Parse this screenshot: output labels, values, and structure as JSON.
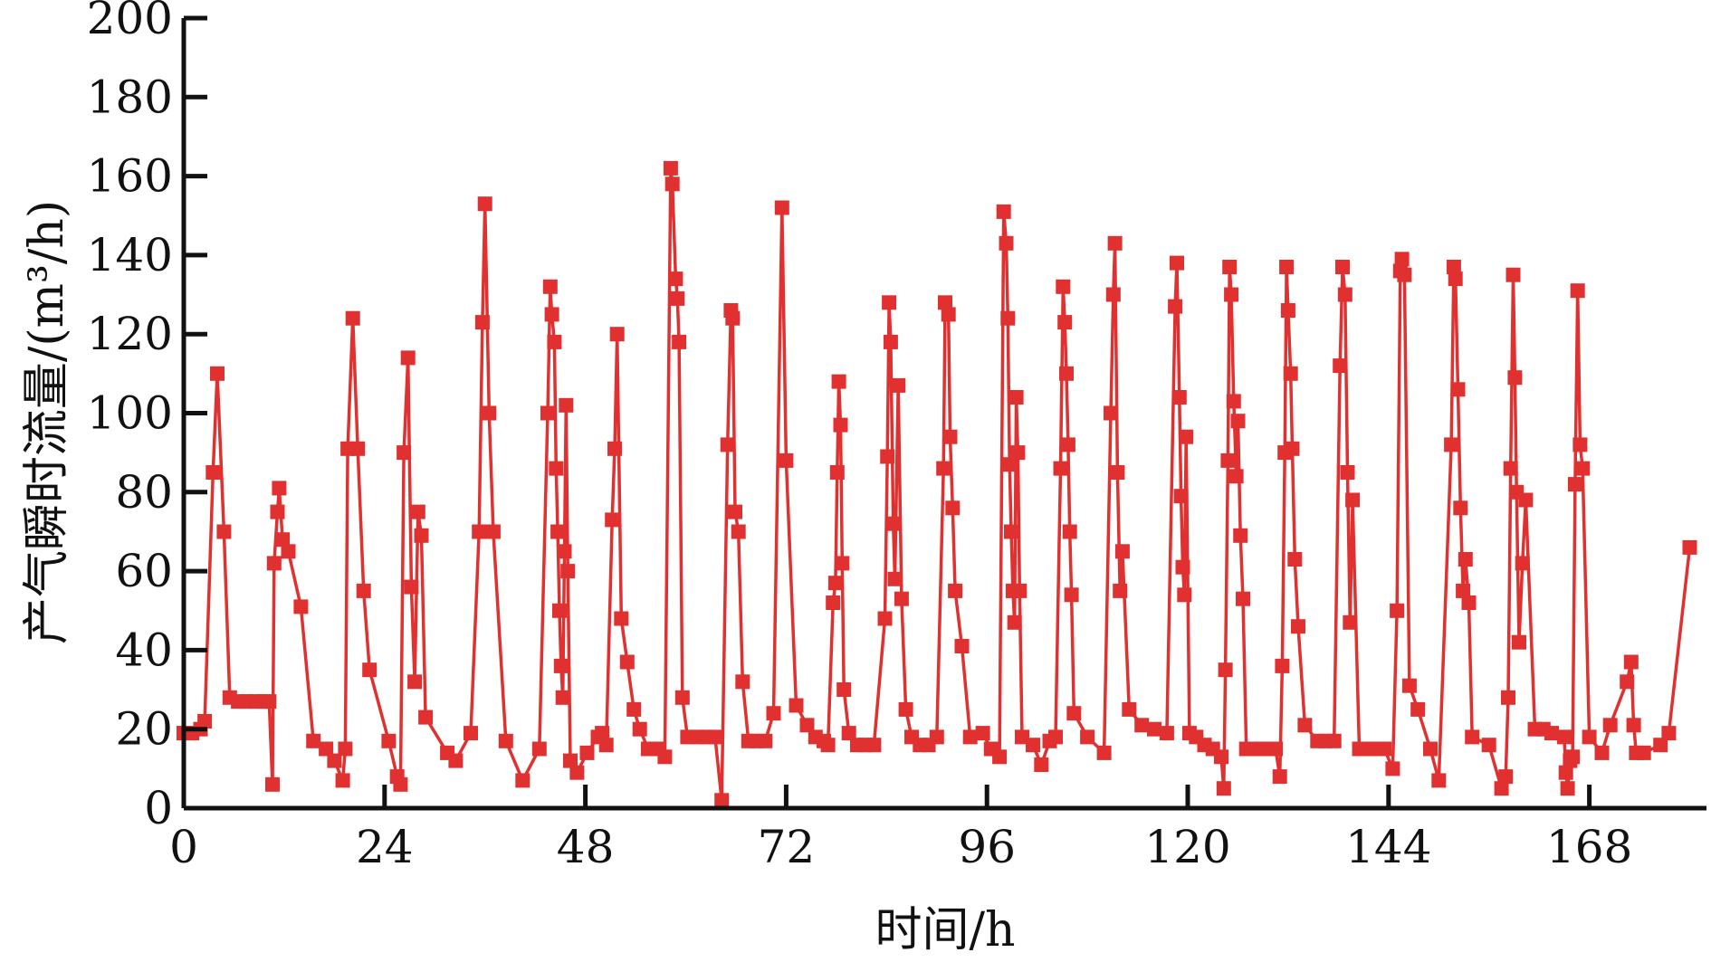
{
  "chart_data": {
    "type": "line",
    "title": "",
    "xlabel": "时间/h",
    "ylabel": "产气瞬时流量/(m³/h)",
    "xlim": [
      0,
      182
    ],
    "ylim": [
      0,
      200
    ],
    "xticks": [
      0,
      24,
      48,
      72,
      96,
      120,
      144,
      168
    ],
    "yticks": [
      0,
      20,
      40,
      60,
      80,
      100,
      120,
      140,
      160,
      180,
      200
    ],
    "grid": false,
    "legend": "none",
    "series": [
      {
        "color": "#e03030",
        "marker": "square",
        "points": [
          [
            0,
            19
          ],
          [
            1,
            19
          ],
          [
            2,
            20
          ],
          [
            2.5,
            22
          ],
          [
            3.5,
            85
          ],
          [
            4,
            110
          ],
          [
            4.8,
            70
          ],
          [
            5.5,
            28
          ],
          [
            6.5,
            27
          ],
          [
            7.5,
            27
          ],
          [
            8.5,
            27
          ],
          [
            9.5,
            27
          ],
          [
            10.2,
            27
          ],
          [
            10.6,
            6
          ],
          [
            10.8,
            62
          ],
          [
            11.2,
            75
          ],
          [
            11.4,
            81
          ],
          [
            11.8,
            68
          ],
          [
            12.5,
            65
          ],
          [
            14,
            51
          ],
          [
            15.5,
            17
          ],
          [
            17,
            15
          ],
          [
            18,
            12
          ],
          [
            19,
            7
          ],
          [
            19.3,
            15
          ],
          [
            19.6,
            91
          ],
          [
            20.2,
            124
          ],
          [
            20.8,
            91
          ],
          [
            21.5,
            55
          ],
          [
            22.2,
            35
          ],
          [
            24.5,
            17
          ],
          [
            25.5,
            8
          ],
          [
            25.9,
            6
          ],
          [
            26.3,
            90
          ],
          [
            26.8,
            114
          ],
          [
            27.2,
            56
          ],
          [
            27.6,
            32
          ],
          [
            28,
            75
          ],
          [
            28.4,
            69
          ],
          [
            28.9,
            23
          ],
          [
            31.5,
            14
          ],
          [
            32.5,
            12
          ],
          [
            34.3,
            19
          ],
          [
            35.3,
            70
          ],
          [
            35.7,
            123
          ],
          [
            36,
            153
          ],
          [
            36.5,
            100
          ],
          [
            37,
            70
          ],
          [
            38.5,
            17
          ],
          [
            40.5,
            7
          ],
          [
            42.5,
            15
          ],
          [
            43.5,
            100
          ],
          [
            43.8,
            132
          ],
          [
            44,
            125
          ],
          [
            44.3,
            118
          ],
          [
            44.5,
            86
          ],
          [
            44.7,
            70
          ],
          [
            44.9,
            50
          ],
          [
            45.1,
            36
          ],
          [
            45.3,
            28
          ],
          [
            45.5,
            65
          ],
          [
            45.7,
            102
          ],
          [
            45.9,
            60
          ],
          [
            46.2,
            12
          ],
          [
            47,
            9
          ],
          [
            48.2,
            14
          ],
          [
            49.5,
            18
          ],
          [
            50,
            19
          ],
          [
            50.5,
            16
          ],
          [
            51.2,
            73
          ],
          [
            51.5,
            91
          ],
          [
            51.8,
            120
          ],
          [
            52.3,
            48
          ],
          [
            53,
            37
          ],
          [
            53.8,
            25
          ],
          [
            54.5,
            20
          ],
          [
            55.5,
            15
          ],
          [
            56.5,
            15
          ],
          [
            57.5,
            13
          ],
          [
            58.2,
            162
          ],
          [
            58.4,
            158
          ],
          [
            58.8,
            134
          ],
          [
            59,
            129
          ],
          [
            59.2,
            118
          ],
          [
            59.6,
            28
          ],
          [
            60.2,
            18
          ],
          [
            61.5,
            18
          ],
          [
            62.5,
            18
          ],
          [
            63.5,
            18
          ],
          [
            64.3,
            2
          ],
          [
            65,
            92
          ],
          [
            65.4,
            126
          ],
          [
            65.6,
            124
          ],
          [
            65.9,
            75
          ],
          [
            66.3,
            70
          ],
          [
            66.8,
            32
          ],
          [
            67.5,
            17
          ],
          [
            68.5,
            17
          ],
          [
            69.5,
            17
          ],
          [
            70.5,
            24
          ],
          [
            71.5,
            152
          ],
          [
            72,
            88
          ],
          [
            73.2,
            26
          ],
          [
            74.5,
            21
          ],
          [
            75.5,
            18
          ],
          [
            76.5,
            17
          ],
          [
            77,
            16
          ],
          [
            77.6,
            52
          ],
          [
            77.9,
            57
          ],
          [
            78.1,
            85
          ],
          [
            78.3,
            108
          ],
          [
            78.5,
            97
          ],
          [
            78.7,
            62
          ],
          [
            78.9,
            30
          ],
          [
            79.5,
            19
          ],
          [
            80.5,
            16
          ],
          [
            81.5,
            16
          ],
          [
            82.5,
            16
          ],
          [
            83.8,
            48
          ],
          [
            84.1,
            89
          ],
          [
            84.3,
            128
          ],
          [
            84.5,
            118
          ],
          [
            84.8,
            72
          ],
          [
            85,
            58
          ],
          [
            85.4,
            107
          ],
          [
            85.8,
            53
          ],
          [
            86.3,
            25
          ],
          [
            87,
            18
          ],
          [
            88,
            16
          ],
          [
            89,
            16
          ],
          [
            90,
            18
          ],
          [
            90.8,
            86
          ],
          [
            91,
            128
          ],
          [
            91.4,
            125
          ],
          [
            91.6,
            94
          ],
          [
            91.9,
            76
          ],
          [
            92.2,
            55
          ],
          [
            93,
            41
          ],
          [
            94,
            18
          ],
          [
            95.5,
            19
          ],
          [
            96.5,
            15
          ],
          [
            97.5,
            13
          ],
          [
            98,
            151
          ],
          [
            98.3,
            143
          ],
          [
            98.5,
            124
          ],
          [
            98.7,
            87
          ],
          [
            98.9,
            70
          ],
          [
            99.1,
            55
          ],
          [
            99.3,
            47
          ],
          [
            99.5,
            104
          ],
          [
            99.7,
            90
          ],
          [
            99.9,
            55
          ],
          [
            100.2,
            18
          ],
          [
            101.5,
            16
          ],
          [
            102.5,
            11
          ],
          [
            103.5,
            17
          ],
          [
            104.2,
            18
          ],
          [
            104.8,
            86
          ],
          [
            105.1,
            132
          ],
          [
            105.3,
            123
          ],
          [
            105.5,
            110
          ],
          [
            105.7,
            92
          ],
          [
            105.9,
            70
          ],
          [
            106.1,
            54
          ],
          [
            106.4,
            24
          ],
          [
            108,
            18
          ],
          [
            110,
            14
          ],
          [
            110.8,
            100
          ],
          [
            111.1,
            130
          ],
          [
            111.3,
            143
          ],
          [
            111.6,
            85
          ],
          [
            111.9,
            55
          ],
          [
            112.2,
            65
          ],
          [
            113,
            25
          ],
          [
            114.5,
            21
          ],
          [
            116,
            20
          ],
          [
            117.5,
            19
          ],
          [
            118.5,
            127
          ],
          [
            118.7,
            138
          ],
          [
            119,
            104
          ],
          [
            119.2,
            79
          ],
          [
            119.4,
            61
          ],
          [
            119.6,
            54
          ],
          [
            119.8,
            94
          ],
          [
            120.2,
            19
          ],
          [
            121,
            18
          ],
          [
            122,
            16
          ],
          [
            123,
            15
          ],
          [
            124,
            13
          ],
          [
            124.3,
            5
          ],
          [
            124.5,
            35
          ],
          [
            124.8,
            88
          ],
          [
            125,
            137
          ],
          [
            125.2,
            130
          ],
          [
            125.5,
            103
          ],
          [
            125.8,
            84
          ],
          [
            126,
            98
          ],
          [
            126.3,
            69
          ],
          [
            126.6,
            53
          ],
          [
            127,
            15
          ],
          [
            128,
            15
          ],
          [
            129.5,
            15
          ],
          [
            130.5,
            15
          ],
          [
            131,
            8
          ],
          [
            131.3,
            36
          ],
          [
            131.6,
            90
          ],
          [
            131.8,
            137
          ],
          [
            132,
            126
          ],
          [
            132.3,
            110
          ],
          [
            132.5,
            91
          ],
          [
            132.8,
            63
          ],
          [
            133.2,
            46
          ],
          [
            134,
            21
          ],
          [
            135.5,
            17
          ],
          [
            136.5,
            17
          ],
          [
            137.5,
            17
          ],
          [
            138.2,
            112
          ],
          [
            138.5,
            137
          ],
          [
            138.8,
            130
          ],
          [
            139.1,
            85
          ],
          [
            139.4,
            47
          ],
          [
            139.7,
            78
          ],
          [
            140.5,
            15
          ],
          [
            142,
            15
          ],
          [
            143.5,
            15
          ],
          [
            144.5,
            10
          ],
          [
            145,
            50
          ],
          [
            145.4,
            136
          ],
          [
            145.6,
            139
          ],
          [
            145.9,
            135
          ],
          [
            146.5,
            31
          ],
          [
            147.5,
            25
          ],
          [
            149,
            15
          ],
          [
            150,
            7
          ],
          [
            151.5,
            92
          ],
          [
            151.8,
            137
          ],
          [
            152,
            134
          ],
          [
            152.3,
            106
          ],
          [
            152.6,
            76
          ],
          [
            152.9,
            55
          ],
          [
            153.2,
            63
          ],
          [
            153.6,
            52
          ],
          [
            154,
            18
          ],
          [
            156,
            16
          ],
          [
            157.5,
            5
          ],
          [
            158,
            8
          ],
          [
            158.3,
            28
          ],
          [
            158.6,
            86
          ],
          [
            158.9,
            135
          ],
          [
            159.1,
            109
          ],
          [
            159.3,
            80
          ],
          [
            159.6,
            42
          ],
          [
            160,
            62
          ],
          [
            160.4,
            78
          ],
          [
            161.5,
            20
          ],
          [
            162.5,
            20
          ],
          [
            163.5,
            19
          ],
          [
            165,
            18
          ],
          [
            165.2,
            9
          ],
          [
            165.4,
            5
          ],
          [
            165.7,
            12
          ],
          [
            166,
            13
          ],
          [
            166.3,
            82
          ],
          [
            166.6,
            131
          ],
          [
            166.9,
            92
          ],
          [
            167.2,
            86
          ],
          [
            168,
            18
          ],
          [
            169.5,
            14
          ],
          [
            170.5,
            21
          ],
          [
            172.5,
            32
          ],
          [
            173,
            37
          ],
          [
            173.3,
            21
          ],
          [
            173.6,
            14
          ],
          [
            174.5,
            14
          ],
          [
            176.5,
            16
          ],
          [
            177.5,
            19
          ],
          [
            180,
            66
          ]
        ]
      }
    ]
  }
}
